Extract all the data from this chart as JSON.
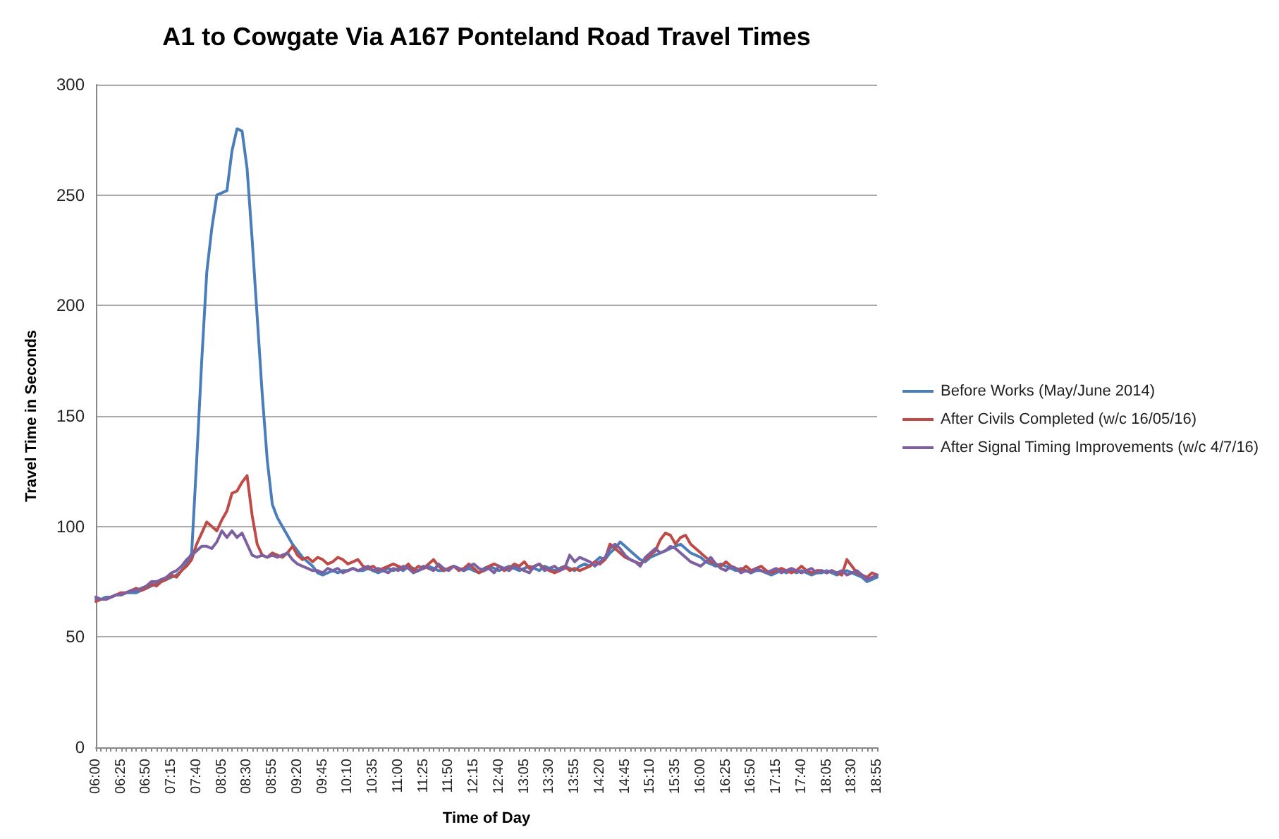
{
  "chart_data": {
    "type": "line",
    "title": "A1 to Cowgate Via A167 Ponteland Road Travel Times",
    "xlabel": "Time of Day",
    "ylabel": "Travel Time in Seconds",
    "categories": [
      "06:00",
      null,
      null,
      null,
      null,
      "06:25",
      null,
      null,
      null,
      null,
      "06:50",
      null,
      null,
      null,
      null,
      "07:15",
      null,
      null,
      null,
      null,
      "07:40",
      null,
      null,
      null,
      null,
      "08:05",
      null,
      null,
      null,
      null,
      "08:30",
      null,
      null,
      null,
      null,
      "08:55",
      null,
      null,
      null,
      null,
      "09:20",
      null,
      null,
      null,
      null,
      "09:45",
      null,
      null,
      null,
      null,
      "10:10",
      null,
      null,
      null,
      null,
      "10:35",
      null,
      null,
      null,
      null,
      "11:00",
      null,
      null,
      null,
      null,
      "11:25",
      null,
      null,
      null,
      null,
      "11:50",
      null,
      null,
      null,
      null,
      "12:15",
      null,
      null,
      null,
      null,
      "12:40",
      null,
      null,
      null,
      null,
      "13:05",
      null,
      null,
      null,
      null,
      "13:30",
      null,
      null,
      null,
      null,
      "13:55",
      null,
      null,
      null,
      null,
      "14:20",
      null,
      null,
      null,
      null,
      "14:45",
      null,
      null,
      null,
      null,
      "15:10",
      null,
      null,
      null,
      null,
      "15:35",
      null,
      null,
      null,
      null,
      "16:00",
      null,
      null,
      null,
      null,
      "16:25",
      null,
      null,
      null,
      null,
      "16:50",
      null,
      null,
      null,
      null,
      "17:15",
      null,
      null,
      null,
      null,
      "17:40",
      null,
      null,
      null,
      null,
      "18:05",
      null,
      null,
      null,
      null,
      "18:30",
      null,
      null,
      null,
      null,
      "18:55"
    ],
    "series": [
      {
        "name": "Before Works (May/June 2014)",
        "color": "#4a7ebb",
        "values": [
          67,
          67,
          68,
          68,
          69,
          69,
          70,
          70,
          70,
          71,
          72,
          73,
          74,
          75,
          76,
          77,
          78,
          80,
          83,
          88,
          130,
          175,
          215,
          235,
          250,
          251,
          252,
          270,
          280,
          279,
          262,
          230,
          195,
          160,
          130,
          110,
          104,
          100,
          96,
          92,
          89,
          86,
          84,
          82,
          79,
          78,
          79,
          80,
          79,
          80,
          80,
          81,
          80,
          80,
          81,
          80,
          79,
          80,
          81,
          80,
          81,
          80,
          82,
          81,
          80,
          81,
          82,
          81,
          80,
          80,
          81,
          82,
          81,
          80,
          81,
          80,
          79,
          81,
          82,
          81,
          80,
          81,
          82,
          81,
          80,
          81,
          82,
          81,
          80,
          82,
          81,
          80,
          81,
          82,
          81,
          80,
          82,
          83,
          82,
          84,
          86,
          85,
          88,
          90,
          93,
          91,
          89,
          87,
          85,
          84,
          86,
          87,
          88,
          89,
          90,
          91,
          92,
          90,
          88,
          87,
          86,
          84,
          83,
          82,
          83,
          82,
          81,
          80,
          81,
          80,
          79,
          80,
          80,
          79,
          78,
          79,
          80,
          79,
          80,
          79,
          80,
          79,
          78,
          79,
          79,
          80,
          79,
          78,
          79,
          80,
          79,
          78,
          77,
          75,
          76,
          77
        ]
      },
      {
        "name": "After Civils Completed (w/c 16/05/16)",
        "color": "#be4b48",
        "values": [
          66,
          67,
          67,
          68,
          69,
          70,
          70,
          71,
          72,
          71,
          72,
          74,
          73,
          75,
          76,
          78,
          77,
          80,
          82,
          85,
          92,
          97,
          102,
          100,
          98,
          103,
          107,
          115,
          116,
          120,
          123,
          105,
          92,
          87,
          86,
          88,
          87,
          86,
          88,
          91,
          87,
          85,
          86,
          84,
          86,
          85,
          83,
          84,
          86,
          85,
          83,
          84,
          85,
          82,
          81,
          82,
          80,
          81,
          82,
          83,
          82,
          81,
          83,
          80,
          82,
          81,
          83,
          85,
          82,
          80,
          81,
          82,
          80,
          81,
          83,
          81,
          79,
          80,
          82,
          83,
          82,
          80,
          81,
          83,
          82,
          84,
          81,
          82,
          83,
          81,
          80,
          79,
          80,
          82,
          80,
          81,
          80,
          81,
          82,
          84,
          83,
          85,
          92,
          90,
          88,
          86,
          85,
          84,
          83,
          85,
          87,
          89,
          94,
          97,
          96,
          92,
          95,
          96,
          92,
          90,
          88,
          86,
          84,
          83,
          82,
          84,
          82,
          81,
          80,
          82,
          80,
          81,
          82,
          80,
          79,
          80,
          81,
          80,
          79,
          80,
          82,
          80,
          79,
          80,
          80,
          79,
          80,
          79,
          78,
          85,
          82,
          79,
          78,
          77,
          79,
          78
        ]
      },
      {
        "name": "After Signal Timing Improvements (w/c 4/7/16)",
        "color": "#7d60a0",
        "values": [
          68,
          67,
          67,
          68,
          69,
          69,
          70,
          71,
          71,
          72,
          73,
          75,
          75,
          76,
          77,
          79,
          80,
          82,
          85,
          87,
          89,
          91,
          91,
          90,
          93,
          98,
          95,
          98,
          95,
          97,
          92,
          87,
          86,
          87,
          86,
          87,
          86,
          87,
          88,
          85,
          83,
          82,
          81,
          80,
          80,
          79,
          81,
          80,
          81,
          79,
          80,
          81,
          80,
          81,
          82,
          80,
          81,
          80,
          79,
          81,
          80,
          82,
          81,
          79,
          80,
          82,
          81,
          80,
          83,
          81,
          80,
          82,
          81,
          80,
          82,
          83,
          81,
          80,
          81,
          79,
          82,
          81,
          80,
          82,
          81,
          80,
          79,
          82,
          83,
          80,
          81,
          82,
          80,
          81,
          87,
          84,
          86,
          85,
          84,
          82,
          84,
          86,
          90,
          92,
          90,
          87,
          85,
          84,
          82,
          86,
          88,
          90,
          88,
          89,
          91,
          90,
          88,
          86,
          84,
          83,
          82,
          84,
          86,
          83,
          81,
          80,
          82,
          81,
          79,
          80,
          79,
          81,
          80,
          79,
          80,
          81,
          79,
          80,
          81,
          80,
          79,
          80,
          81,
          79,
          80,
          79,
          80,
          79,
          80,
          78,
          79,
          80,
          78,
          76,
          77,
          78
        ]
      }
    ],
    "ylim": [
      0,
      300
    ],
    "yticks": [
      0,
      50,
      100,
      150,
      200,
      250,
      300
    ],
    "grid": "y",
    "legend": "right",
    "marker": "none",
    "line_style": "solid"
  }
}
